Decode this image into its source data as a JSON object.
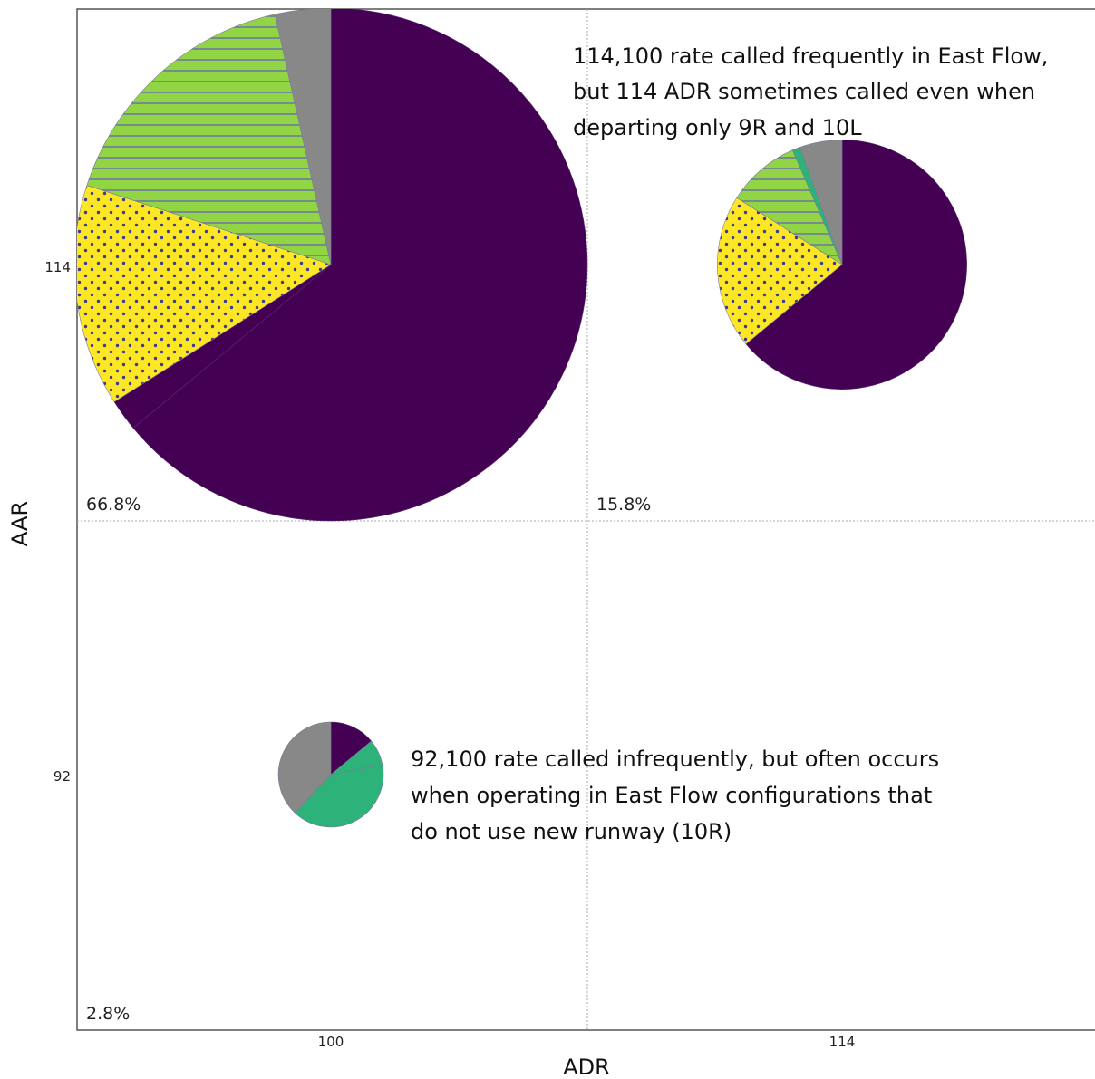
{
  "chart_data": {
    "type": "scatter",
    "subtype": "pie-scatter",
    "title": "",
    "xlabel": "ADR",
    "ylabel": "AAR",
    "x_ticks": [
      "100",
      "114"
    ],
    "y_ticks": [
      "114",
      "92"
    ],
    "grid": true,
    "legend": "none",
    "colors": {
      "purple": "#440154",
      "teal": "#2db37a",
      "yellow": "#fde725",
      "green": "#91d544",
      "gray": "#888888",
      "dots": "#3b3b8f",
      "stripes": "#6b6bb0"
    },
    "cells": [
      {
        "adr": "100",
        "aar": "114",
        "share_label": "66.8%",
        "share": 66.8,
        "slices": [
          {
            "color": "purple",
            "pattern": "solid",
            "fraction": 0.64
          },
          {
            "color": "purple",
            "pattern": "solid",
            "fraction": 0.02
          },
          {
            "color": "yellow",
            "pattern": "dots",
            "fraction": 0.14
          },
          {
            "color": "green",
            "pattern": "stripes",
            "fraction": 0.165
          },
          {
            "color": "gray",
            "pattern": "solid",
            "fraction": 0.035
          }
        ]
      },
      {
        "adr": "114",
        "aar": "114",
        "share_label": "15.8%",
        "share": 15.8,
        "slices": [
          {
            "color": "purple",
            "pattern": "solid",
            "fraction": 0.64
          },
          {
            "color": "yellow",
            "pattern": "dots",
            "fraction": 0.2
          },
          {
            "color": "green",
            "pattern": "stripes",
            "fraction": 0.095
          },
          {
            "color": "teal",
            "pattern": "solid",
            "fraction": 0.01
          },
          {
            "color": "gray",
            "pattern": "solid",
            "fraction": 0.055
          }
        ]
      },
      {
        "adr": "100",
        "aar": "92",
        "share_label": "2.8%",
        "share": 2.8,
        "slices": [
          {
            "color": "purple",
            "pattern": "solid",
            "fraction": 0.14
          },
          {
            "color": "teal",
            "pattern": "solid",
            "fraction": 0.08
          },
          {
            "color": "teal",
            "pattern": "solid",
            "fraction": 0.4
          },
          {
            "color": "gray",
            "pattern": "solid",
            "fraction": 0.38
          }
        ]
      }
    ],
    "annotations": [
      {
        "cell": 1,
        "lines": [
          "114,100 rate called frequently in East Flow,",
          "but 114 ADR sometimes called even when",
          "departing only 9R and 10L"
        ]
      },
      {
        "cell": 2,
        "lines": [
          "92,100 rate called infrequently, but often occurs",
          "when operating in East Flow configurations that",
          "do not use new runway (10R)"
        ]
      }
    ]
  }
}
